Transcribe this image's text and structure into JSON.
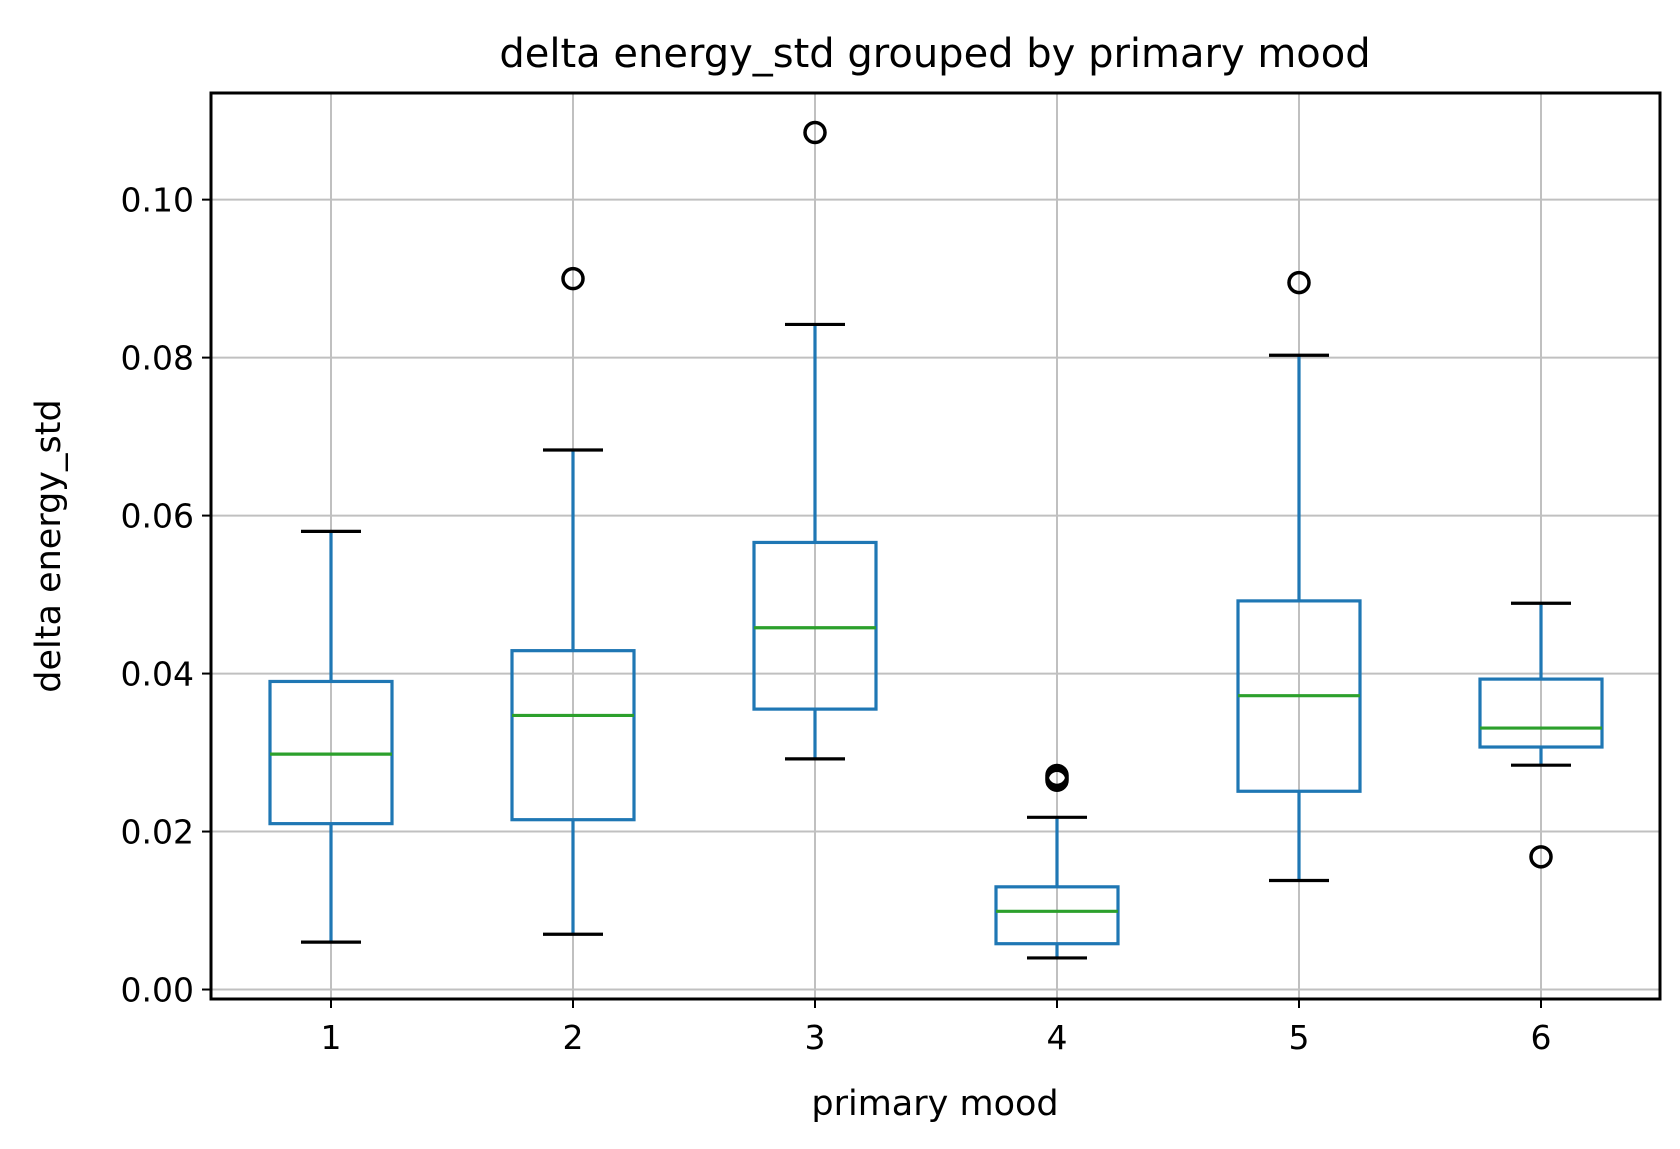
{
  "chart_data": {
    "type": "box",
    "title": "delta energy_std grouped by primary mood",
    "xlabel": "primary mood",
    "ylabel": "delta energy_std",
    "categories": [
      "1",
      "2",
      "3",
      "4",
      "5",
      "6"
    ],
    "ylim": [
      -0.0012,
      0.1135
    ],
    "yticks": [
      0.0,
      0.02,
      0.04,
      0.06,
      0.08,
      0.1
    ],
    "ytick_labels": [
      "0.00",
      "0.02",
      "0.04",
      "0.06",
      "0.08",
      "0.10"
    ],
    "grid": true,
    "legend": "none",
    "series": [
      {
        "category": "1",
        "whisker_low": 0.006,
        "q1": 0.021,
        "median": 0.0298,
        "q3": 0.039,
        "whisker_high": 0.058,
        "outliers": []
      },
      {
        "category": "2",
        "whisker_low": 0.007,
        "q1": 0.0215,
        "median": 0.0347,
        "q3": 0.0429,
        "whisker_high": 0.0683,
        "outliers": [
          0.09
        ]
      },
      {
        "category": "3",
        "whisker_low": 0.0292,
        "q1": 0.0355,
        "median": 0.0458,
        "q3": 0.0566,
        "whisker_high": 0.0842,
        "outliers": [
          0.1085
        ]
      },
      {
        "category": "4",
        "whisker_low": 0.004,
        "q1": 0.0058,
        "median": 0.0099,
        "q3": 0.013,
        "whisker_high": 0.0218,
        "outliers": [
          0.0265,
          0.0268,
          0.0271
        ]
      },
      {
        "category": "5",
        "whisker_low": 0.0138,
        "q1": 0.0251,
        "median": 0.0372,
        "q3": 0.0492,
        "whisker_high": 0.0803,
        "outliers": [
          0.0895
        ]
      },
      {
        "category": "6",
        "whisker_low": 0.0284,
        "q1": 0.0307,
        "median": 0.0331,
        "q3": 0.0393,
        "whisker_high": 0.0489,
        "outliers": [
          0.0168
        ]
      }
    ],
    "colors": {
      "box": "#1f77b4",
      "median": "#2ca02c",
      "caps": "#000000",
      "outlier": "#000000",
      "grid": "#c0c0c0",
      "frame": "#000000"
    }
  }
}
